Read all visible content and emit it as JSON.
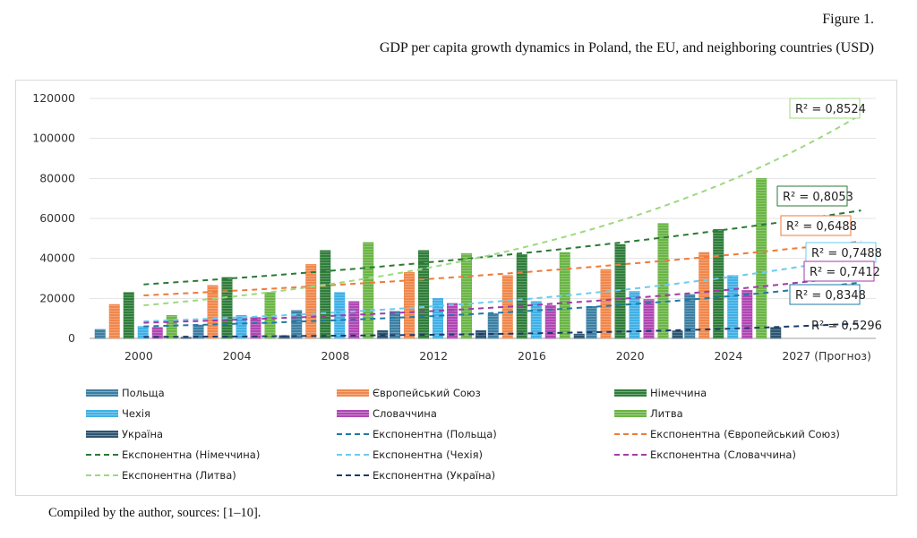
{
  "figure": {
    "number": "Figure 1.",
    "title": "GDP per capita growth dynamics in Poland, the EU, and neighboring countries (USD)",
    "source": "Compiled by the author, sources: [1–10]."
  },
  "chart_data": {
    "type": "bar",
    "title": "",
    "xlabel": "",
    "ylabel": "",
    "ylim": [
      0,
      120000
    ],
    "yticks": [
      "0",
      "20000",
      "40000",
      "60000",
      "80000",
      "100000",
      "120000"
    ],
    "categories": [
      "2000",
      "2004",
      "2008",
      "2012",
      "2016",
      "2020",
      "2024",
      "2027 (Прогноз)"
    ],
    "grid": true,
    "legend_position": "bottom",
    "series": [
      {
        "name": "Польща",
        "color": "#3c7fa3",
        "values": [
          4500,
          6700,
          14000,
          13500,
          12500,
          16000,
          22000,
          null
        ]
      },
      {
        "name": "Європейський Союз",
        "color": "#f0874b",
        "values": [
          17000,
          26500,
          37000,
          33000,
          31500,
          34500,
          43000,
          null
        ]
      },
      {
        "name": "Німеччина",
        "color": "#2f7d3a",
        "values": [
          23000,
          30500,
          44000,
          44000,
          42000,
          47000,
          54500,
          null
        ]
      },
      {
        "name": "Чехія",
        "color": "#3fb0e6",
        "values": [
          6000,
          11500,
          23000,
          20000,
          18500,
          23500,
          31500,
          null
        ]
      },
      {
        "name": "Словаччина",
        "color": "#b046b3",
        "values": [
          5500,
          10500,
          18500,
          17500,
          16500,
          19500,
          24000,
          null
        ]
      },
      {
        "name": "Литва",
        "color": "#6ab545",
        "values": [
          11500,
          23000,
          48000,
          42500,
          43000,
          57500,
          80000,
          null
        ]
      },
      {
        "name": "Україна",
        "color": "#2c5570",
        "values": [
          600,
          1400,
          3900,
          3900,
          2200,
          3800,
          5500,
          null
        ]
      }
    ],
    "trendlines": [
      {
        "name": "Експонентна (Польща)",
        "series": "Польща",
        "color": "#1f7aa8",
        "r2": "R² = 0,8348",
        "start": 6000,
        "end": 28000
      },
      {
        "name": "Експонентна (Європейський Союз)",
        "series": "Європейський Союз",
        "color": "#ef7a3a",
        "r2": "R² = 0,6488",
        "start": 21500,
        "end": 48500
      },
      {
        "name": "Експонентна (Німеччина)",
        "series": "Німеччина",
        "color": "#2a7a34",
        "r2": "R² = 0,8053",
        "start": 27000,
        "end": 64000
      },
      {
        "name": "Експонентна (Чехія)",
        "series": "Чехія",
        "color": "#6bcbf0",
        "r2": "R² = 0,7488",
        "start": 8500,
        "end": 41000
      },
      {
        "name": "Експонентна (Словаччина)",
        "series": "Словаччина",
        "color": "#a23aa8",
        "r2": "R² = 0,7412",
        "start": 7800,
        "end": 31500
      },
      {
        "name": "Експонентна (Литва)",
        "series": "Литва",
        "color": "#9dd97e",
        "r2": "R² = 0,8524",
        "start": 16500,
        "end": 112000
      },
      {
        "name": "Експонентна (Україна)",
        "series": "Україна",
        "color": "#1b3a6b",
        "r2": "R² = 0,5296",
        "start": 700,
        "end": 7500
      }
    ]
  }
}
